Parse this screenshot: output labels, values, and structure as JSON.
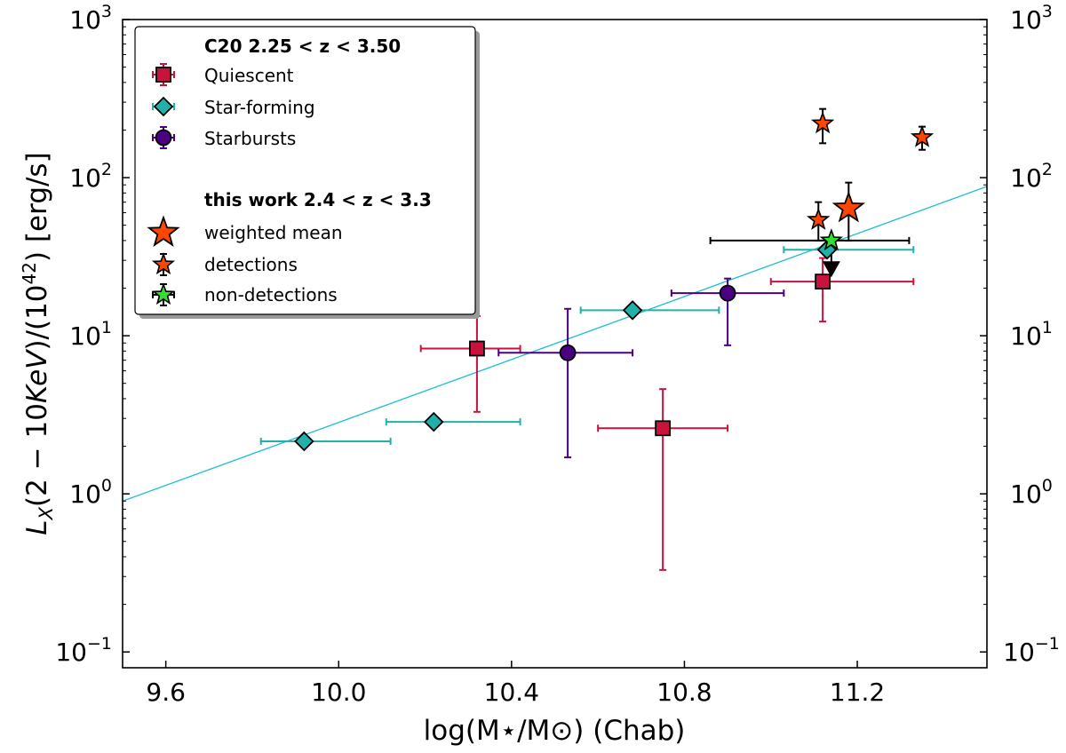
{
  "chart_data": {
    "type": "scatter",
    "xlabel": "log(M⋆/M⊙) (Chab)",
    "ylabel": "L_X(2 − 10KeV)/(10^42) [erg/s]",
    "ylabel_parts": {
      "a": "L",
      "b": "X",
      "c": "(2 − 10",
      "d": "KeV",
      "e": ")/(10",
      "f": "42",
      "g": ") [erg/s]"
    },
    "xlim": [
      9.5,
      11.5
    ],
    "ylim_log10": [
      -1.1,
      3.0
    ],
    "yscale": "log",
    "x_ticks": [
      "9.6",
      "10.0",
      "10.4",
      "10.8",
      "11.2"
    ],
    "y_ticks": [
      {
        "base": "10",
        "exp": "−1"
      },
      {
        "base": "10",
        "exp": "0"
      },
      {
        "base": "10",
        "exp": "1"
      },
      {
        "base": "10",
        "exp": "2"
      },
      {
        "base": "10",
        "exp": "3"
      }
    ],
    "legend": {
      "position": "upper-left",
      "group1_title": "C20 2.25 < z < 3.50",
      "group2_title": "this work 2.4 < z < 3.3",
      "entries": [
        "Quiescent",
        "Star-forming",
        "Starbursts",
        "weighted mean",
        "detections",
        "non-detections"
      ]
    },
    "fit_line": {
      "color": "#17becf",
      "points": [
        [
          9.5,
          0.9
        ],
        [
          11.5,
          88
        ]
      ]
    },
    "series": [
      {
        "name": "Quiescent",
        "marker": "square",
        "color": "#c8143c",
        "points": [
          {
            "x": 10.32,
            "y": 8.3,
            "xerr": [
              0.13,
              0.1
            ],
            "yerr": [
              3.3,
              13.3
            ]
          },
          {
            "x": 10.75,
            "y": 2.6,
            "xerr": [
              0.15,
              0.15
            ],
            "yerr": [
              0.33,
              4.6
            ]
          },
          {
            "x": 11.12,
            "y": 22.0,
            "xerr": [
              0.12,
              0.21
            ],
            "yerr": [
              12.3,
              31.0
            ]
          }
        ]
      },
      {
        "name": "Star-forming",
        "marker": "diamond",
        "color": "#20b2aa",
        "points": [
          {
            "x": 9.92,
            "y": 2.15,
            "xerr": [
              0.1,
              0.2
            ]
          },
          {
            "x": 10.22,
            "y": 2.85,
            "xerr": [
              0.11,
              0.2
            ]
          },
          {
            "x": 10.68,
            "y": 14.5,
            "xerr": [
              0.12,
              0.2
            ]
          },
          {
            "x": 11.13,
            "y": 35.0,
            "xerr": [
              0.1,
              0.2
            ]
          }
        ]
      },
      {
        "name": "Starbursts",
        "marker": "circle",
        "color": "#4b0082",
        "points": [
          {
            "x": 10.53,
            "y": 7.8,
            "xerr": [
              0.16,
              0.15
            ],
            "yerr": [
              1.7,
              14.8
            ]
          },
          {
            "x": 10.9,
            "y": 18.6,
            "xerr": [
              0.13,
              0.13
            ],
            "yerr": [
              8.7,
              23.0
            ]
          }
        ]
      },
      {
        "name": "detections",
        "marker": "star",
        "color": "#ff4500",
        "points": [
          {
            "x": 11.12,
            "y": 220,
            "yerr": [
              165,
              272
            ]
          },
          {
            "x": 11.35,
            "y": 180,
            "yerr": [
              150,
              210
            ]
          },
          {
            "x": 11.11,
            "y": 54,
            "yerr": [
              40,
              70
            ]
          }
        ]
      },
      {
        "name": "weighted mean",
        "marker": "big-star",
        "color": "#ff4500",
        "points": [
          {
            "x": 11.18,
            "y": 64,
            "yerr": [
              40,
              93
            ]
          }
        ]
      },
      {
        "name": "non-detections",
        "marker": "star-upper-limit",
        "color": "#33dd33",
        "points": [
          {
            "x": 11.14,
            "y": 40,
            "xerr": [
              0.28,
              0.18
            ],
            "upper_limit_arrow_to": 26
          }
        ]
      }
    ]
  }
}
